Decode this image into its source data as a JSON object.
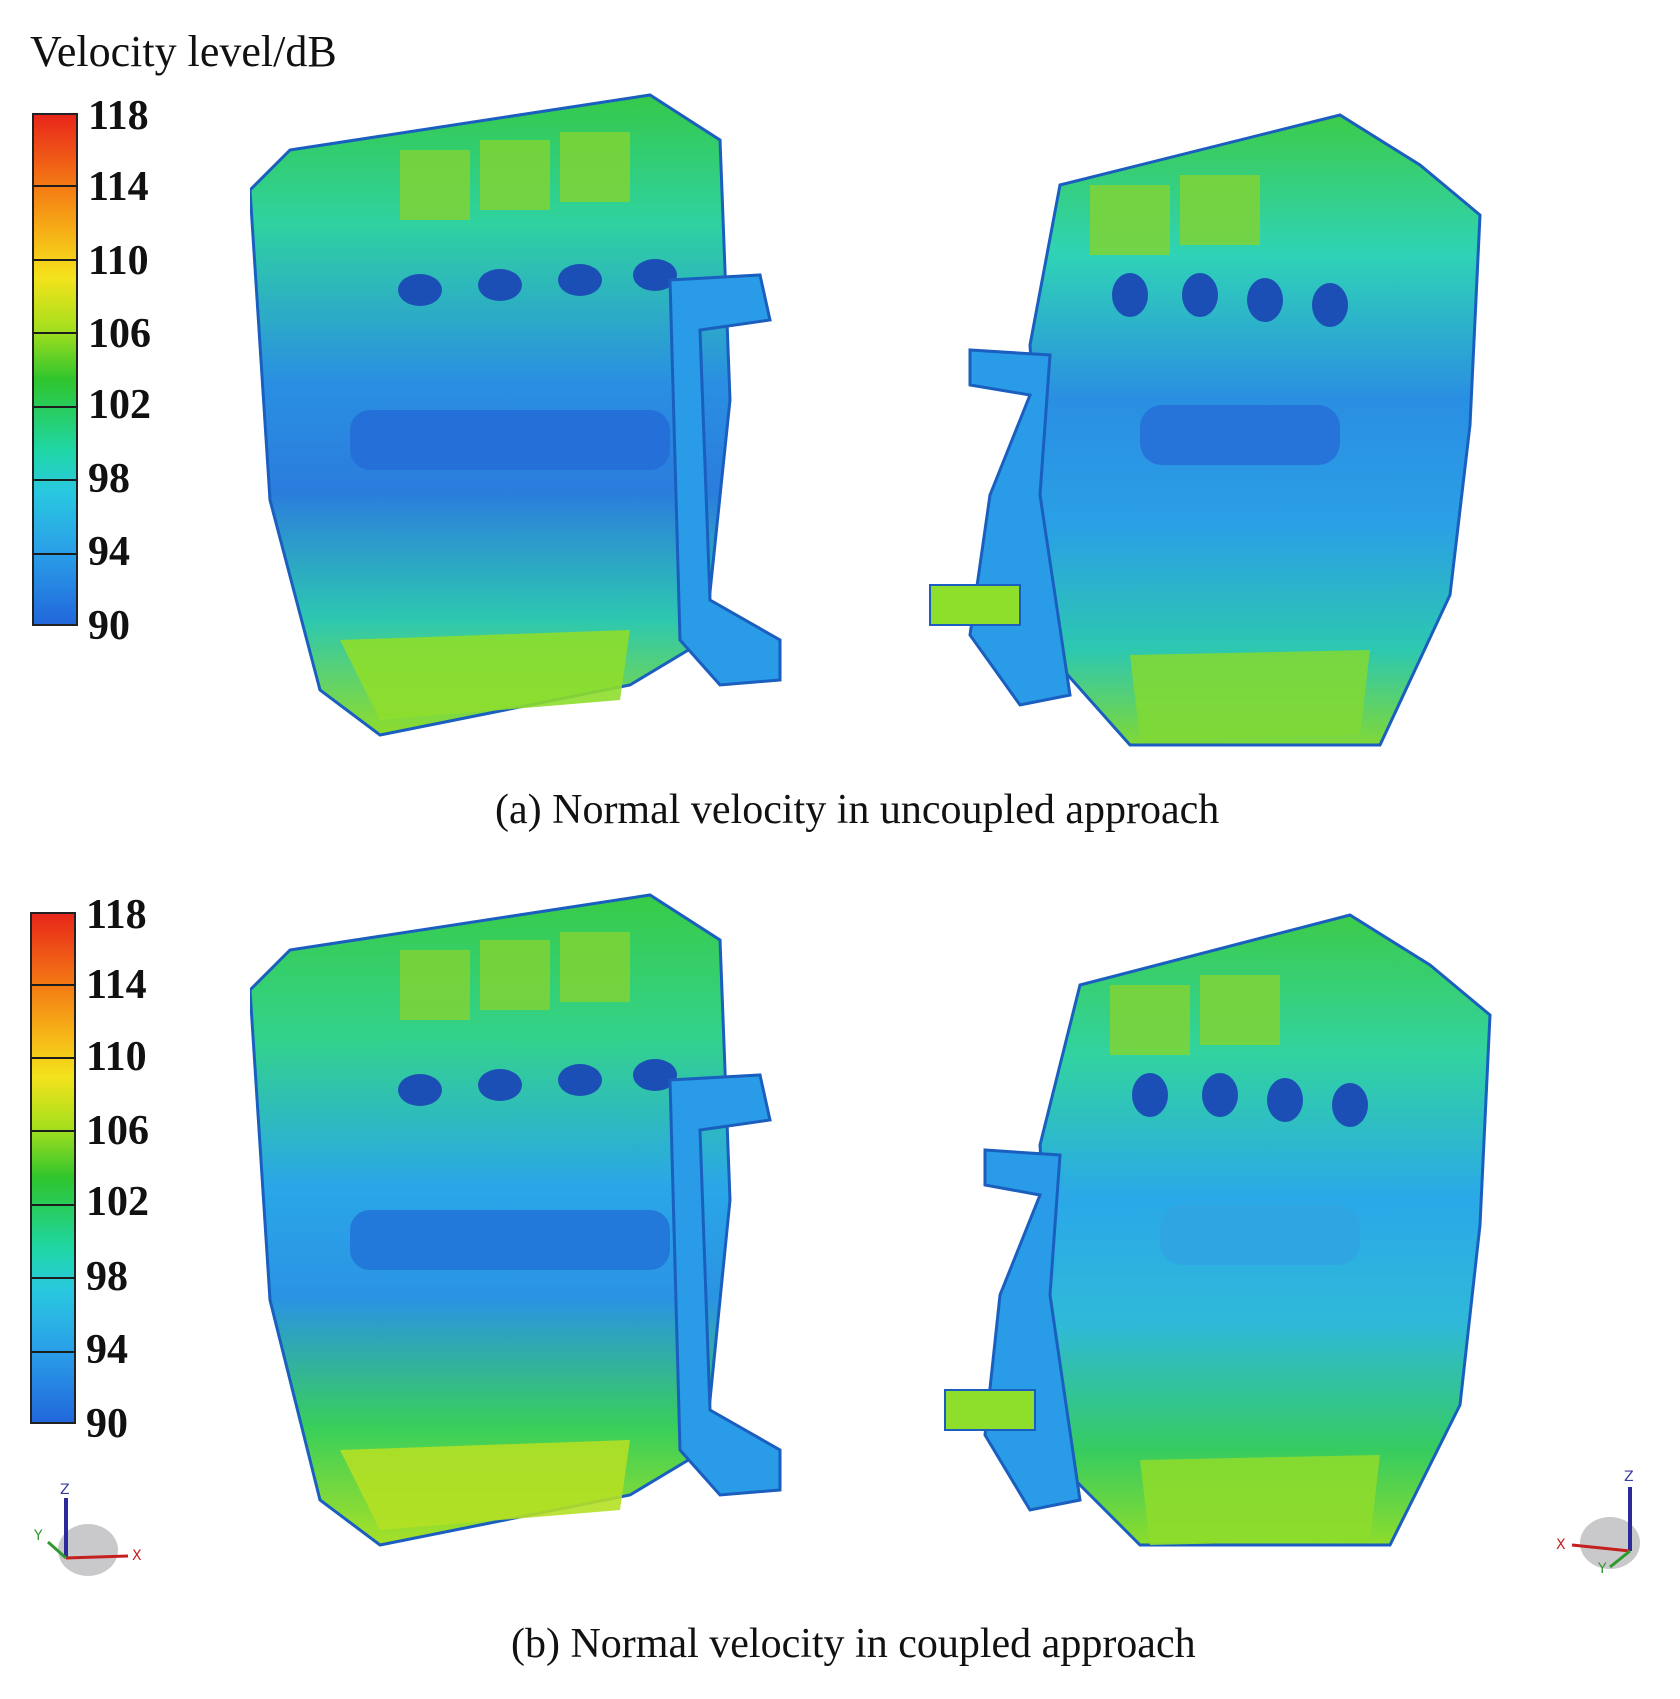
{
  "legend": {
    "title": "Velocity level/dB",
    "ticks": [
      "118",
      "114",
      "110",
      "106",
      "102",
      "98",
      "94",
      "90"
    ],
    "colors": [
      "#e8261a",
      "#f47a14",
      "#f6b617",
      "#f4e31c",
      "#a6df1d",
      "#2fc52d",
      "#1fd7a6",
      "#29c8e0",
      "#2a9fe8",
      "#2167db"
    ]
  },
  "panel_a": {
    "caption": "(a) Normal velocity in uncoupled approach",
    "left_engine_label": "engine-front-view",
    "right_engine_label": "engine-rear-view"
  },
  "panel_b": {
    "caption": "(b) Normal velocity in coupled approach",
    "triad_left": {
      "x": "X",
      "y": "Y",
      "z": "Z"
    },
    "triad_right": {
      "x": "X",
      "y": "Y",
      "z": "Z"
    }
  }
}
